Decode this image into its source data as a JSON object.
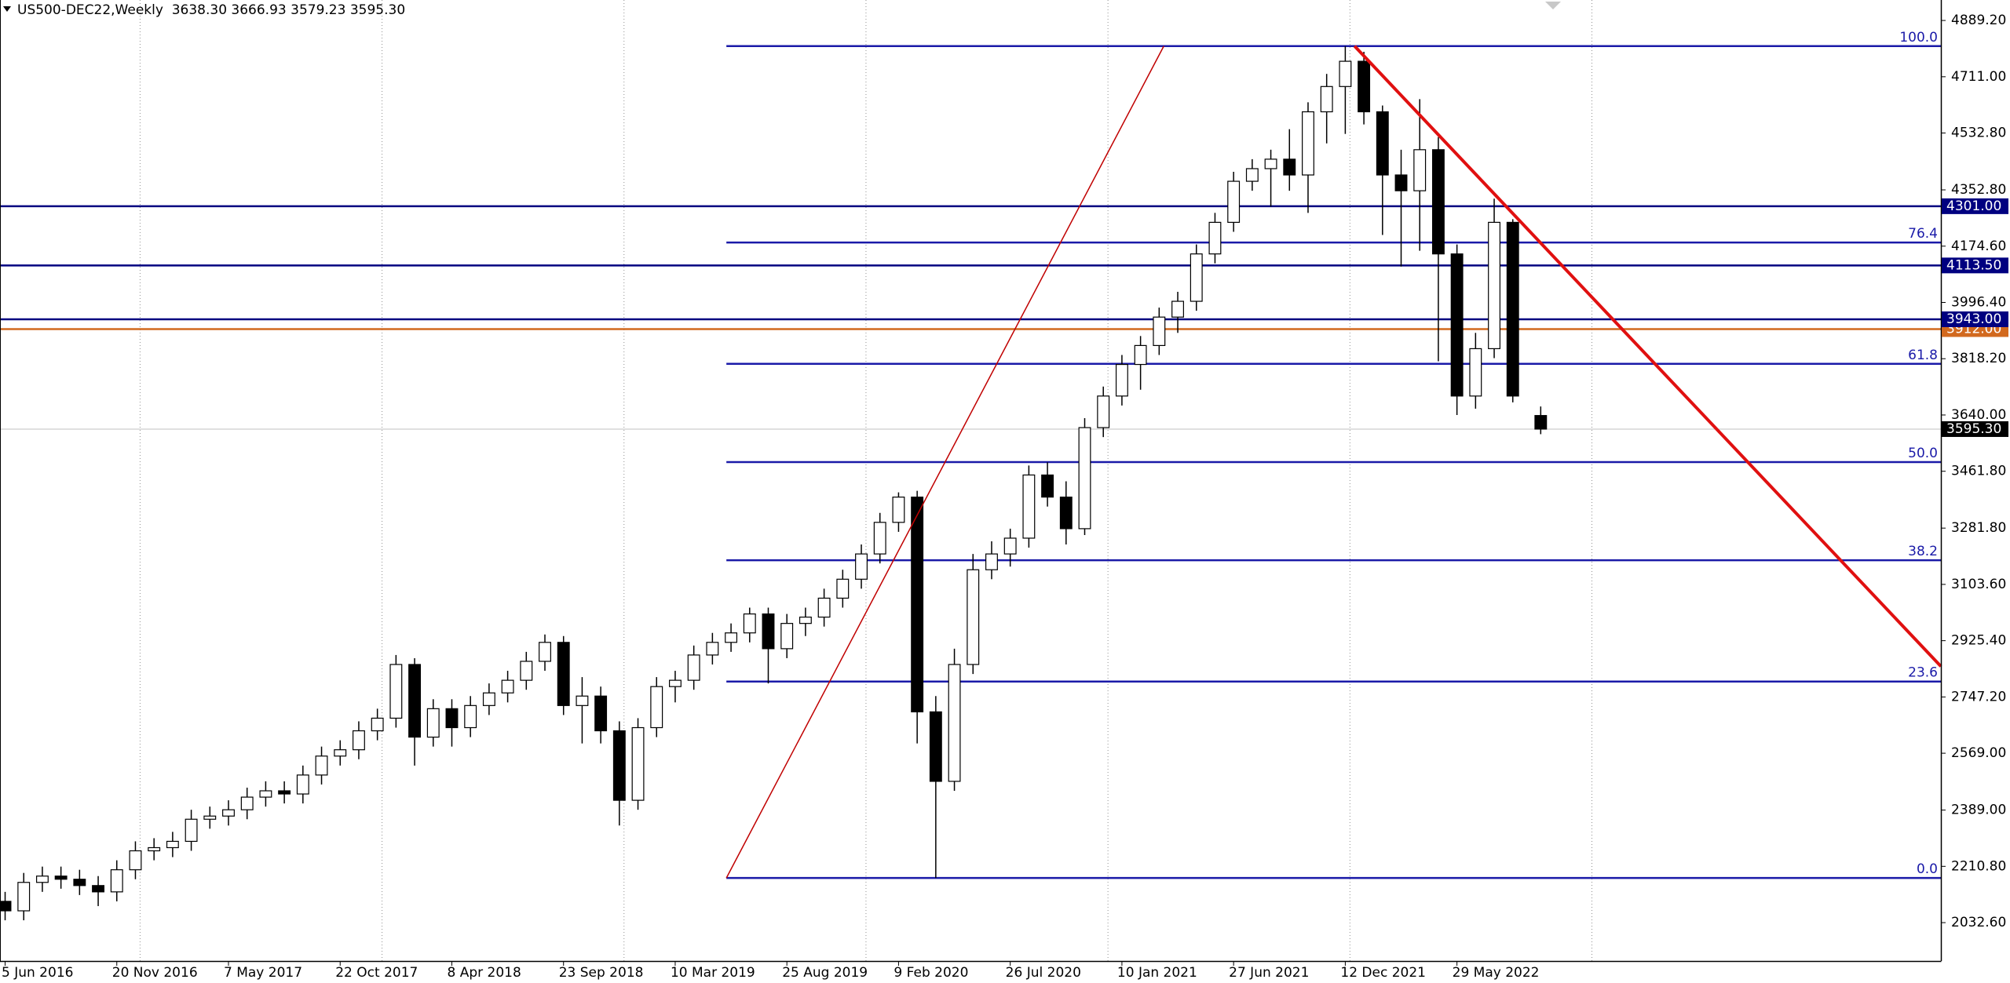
{
  "chart_data": {
    "type": "candlestick",
    "title": "US500-DEC22,Weekly  3638.30 3666.93 3579.23 3595.30",
    "xlim": [
      -1.1,
      416
    ],
    "ylim": [
      1911,
      4954
    ],
    "xticks": [
      {
        "value": 0,
        "label": "5 Jun 2016"
      },
      {
        "value": 24,
        "label": "20 Nov 2016"
      },
      {
        "value": 48,
        "label": "7 May 2017"
      },
      {
        "value": 72,
        "label": "22 Oct 2017"
      },
      {
        "value": 96,
        "label": "8 Apr 2018"
      },
      {
        "value": 120,
        "label": "23 Sep 2018"
      },
      {
        "value": 144,
        "label": "10 Mar 2019"
      },
      {
        "value": 168,
        "label": "25 Aug 2019"
      },
      {
        "value": 192,
        "label": "9 Feb 2020"
      },
      {
        "value": 216,
        "label": "26 Jul 2020"
      },
      {
        "value": 240,
        "label": "10 Jan 2021"
      },
      {
        "value": 264,
        "label": "27 Jun 2021"
      },
      {
        "value": 288,
        "label": "12 Dec 2021"
      },
      {
        "value": 312,
        "label": "29 May 2022"
      }
    ],
    "xgrid": [
      29,
      81,
      133,
      185,
      237,
      289,
      341
    ],
    "yticks": [
      {
        "value": 2032.6,
        "label": "2032.60"
      },
      {
        "value": 2210.8,
        "label": "2210.80"
      },
      {
        "value": 2389,
        "label": "2389.00"
      },
      {
        "value": 2569,
        "label": "2569.00"
      },
      {
        "value": 2747.2,
        "label": "2747.20"
      },
      {
        "value": 2925.4,
        "label": "2925.40"
      },
      {
        "value": 3103.6,
        "label": "3103.60"
      },
      {
        "value": 3281.8,
        "label": "3281.80"
      },
      {
        "value": 3461.8,
        "label": "3461.80"
      },
      {
        "value": 3640,
        "label": "3640.00"
      },
      {
        "value": 3818.2,
        "label": "3818.20"
      },
      {
        "value": 3996.4,
        "label": "3996.40"
      },
      {
        "value": 4174.6,
        "label": "4174.60"
      },
      {
        "value": 4352.8,
        "label": "4352.80"
      },
      {
        "value": 4532.8,
        "label": "4532.80"
      },
      {
        "value": 4711,
        "label": "4711.00"
      },
      {
        "value": 4889.2,
        "label": "4889.20"
      }
    ],
    "candles": {
      "up_color": "#ffffff",
      "down_color": "#000000",
      "edge_color": "#000000",
      "x": [
        0,
        4,
        8,
        12,
        16,
        20,
        24,
        28,
        32,
        36,
        40,
        44,
        48,
        52,
        56,
        60,
        64,
        68,
        72,
        76,
        80,
        84,
        88,
        92,
        96,
        100,
        104,
        108,
        112,
        116,
        120,
        124,
        128,
        132,
        136,
        140,
        144,
        148,
        152,
        156,
        160,
        164,
        168,
        172,
        176,
        180,
        184,
        188,
        192,
        196,
        200,
        204,
        208,
        212,
        216,
        220,
        224,
        228,
        232,
        236,
        240,
        244,
        248,
        252,
        256,
        260,
        264,
        268,
        272,
        276,
        280,
        284,
        288,
        292,
        296,
        300,
        304,
        308,
        312,
        316,
        320,
        324,
        330
      ],
      "open": [
        2100,
        2070,
        2160,
        2180,
        2170,
        2150,
        2130,
        2200,
        2260,
        2270,
        2290,
        2360,
        2370,
        2390,
        2430,
        2450,
        2440,
        2500,
        2560,
        2580,
        2640,
        2680,
        2850,
        2620,
        2710,
        2650,
        2720,
        2760,
        2800,
        2860,
        2920,
        2720,
        2750,
        2640,
        2420,
        2650,
        2780,
        2800,
        2880,
        2920,
        2950,
        3010,
        2900,
        2980,
        3000,
        3060,
        3120,
        3200,
        3300,
        3380,
        2700,
        2480,
        2850,
        3150,
        3200,
        3250,
        3450,
        3380,
        3280,
        3600,
        3700,
        3800,
        3860,
        3950,
        4000,
        4150,
        4250,
        4380,
        4420,
        4450,
        4400,
        4600,
        4680,
        4760,
        4600,
        4400,
        4350,
        4480,
        4150,
        3700,
        3850,
        4250,
        3638.3
      ],
      "high": [
        2130,
        2190,
        2210,
        2210,
        2200,
        2180,
        2230,
        2290,
        2300,
        2320,
        2390,
        2400,
        2420,
        2460,
        2480,
        2480,
        2530,
        2590,
        2610,
        2670,
        2710,
        2880,
        2870,
        2740,
        2740,
        2750,
        2790,
        2830,
        2890,
        2945,
        2940,
        2810,
        2780,
        2670,
        2680,
        2810,
        2830,
        2910,
        2950,
        2980,
        3030,
        3030,
        3010,
        3030,
        3090,
        3150,
        3230,
        3330,
        3395,
        3400,
        2750,
        2900,
        3200,
        3240,
        3280,
        3480,
        3490,
        3430,
        3630,
        3730,
        3830,
        3890,
        3980,
        4030,
        4180,
        4280,
        4410,
        4450,
        4480,
        4545,
        4630,
        4720,
        4808,
        4790,
        4620,
        4480,
        4640,
        4520,
        4180,
        3900,
        4325,
        4260,
        3666.93
      ],
      "low": [
        2040,
        2040,
        2130,
        2140,
        2120,
        2085,
        2100,
        2170,
        2230,
        2240,
        2260,
        2330,
        2340,
        2360,
        2400,
        2410,
        2410,
        2470,
        2530,
        2550,
        2610,
        2650,
        2530,
        2590,
        2590,
        2620,
        2690,
        2730,
        2770,
        2830,
        2690,
        2600,
        2600,
        2340,
        2390,
        2620,
        2730,
        2770,
        2850,
        2890,
        2920,
        2790,
        2870,
        2940,
        2970,
        3030,
        3090,
        3170,
        3270,
        2600,
        2174,
        2450,
        2820,
        3120,
        3160,
        3220,
        3350,
        3230,
        3260,
        3570,
        3670,
        3720,
        3830,
        3900,
        3970,
        4120,
        4220,
        4350,
        4300,
        4350,
        4280,
        4500,
        4530,
        4560,
        4210,
        4110,
        4160,
        3810,
        3640,
        3660,
        3820,
        3680,
        3579.23
      ],
      "close": [
        2070,
        2160,
        2180,
        2170,
        2150,
        2130,
        2200,
        2260,
        2270,
        2290,
        2360,
        2370,
        2390,
        2430,
        2450,
        2440,
        2500,
        2560,
        2580,
        2640,
        2680,
        2850,
        2620,
        2710,
        2650,
        2720,
        2760,
        2800,
        2860,
        2920,
        2720,
        2750,
        2640,
        2420,
        2650,
        2780,
        2800,
        2880,
        2920,
        2950,
        3010,
        2900,
        2980,
        3000,
        3060,
        3120,
        3200,
        3300,
        3380,
        2700,
        2480,
        2850,
        3150,
        3200,
        3250,
        3450,
        3380,
        3280,
        3600,
        3700,
        3800,
        3860,
        3950,
        4000,
        4150,
        4250,
        4380,
        4420,
        4450,
        4400,
        4600,
        4680,
        4760,
        4600,
        4400,
        4350,
        4480,
        4150,
        3700,
        3850,
        4250,
        3700,
        3595.3
      ]
    },
    "fibonacci": {
      "start": 155,
      "color": "#1a1aa8",
      "label_color": "#1a1aa8",
      "levels": [
        {
          "value": 4808,
          "label": "100.0"
        },
        {
          "value": 4186,
          "label": "76.4"
        },
        {
          "value": 3802,
          "label": "61.8"
        },
        {
          "value": 3491,
          "label": "50.0"
        },
        {
          "value": 3180,
          "label": "38.2"
        },
        {
          "value": 2796,
          "label": "23.6"
        },
        {
          "value": 2174,
          "label": "0.0"
        }
      ]
    },
    "levels": [
      {
        "value": 3912,
        "label": "3912.00",
        "color": "#d2691e"
      },
      {
        "value": 4301,
        "label": "4301.00",
        "color": "#000080"
      },
      {
        "value": 4113.5,
        "label": "4113.50",
        "color": "#000080"
      },
      {
        "value": 3943,
        "label": "3943.00",
        "color": "#000080"
      }
    ],
    "last_price": {
      "value": 3595.3,
      "label": "3595.30",
      "color": "#000000",
      "line_color": "#c0c0c0"
    },
    "trendlines": [
      {
        "color": "#c00000",
        "width": 1.5,
        "x": [
          155,
          249
        ],
        "y": [
          2174,
          4808
        ]
      },
      {
        "color": "#e01010",
        "width": 4,
        "x": [
          290,
          416
        ],
        "y": [
          4808,
          2844
        ]
      }
    ]
  }
}
